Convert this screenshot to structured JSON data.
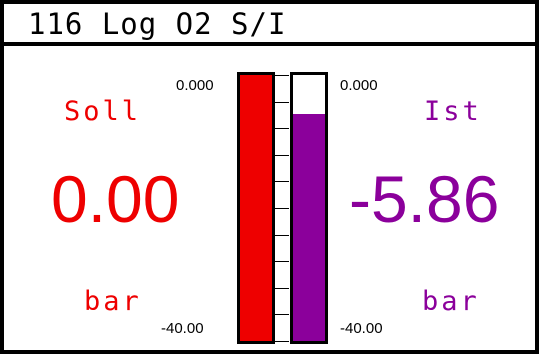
{
  "title": "116 Log O2 S/I",
  "setpoint": {
    "label": "Soll",
    "value": "0.00",
    "unit": "bar",
    "color": "#ee0000",
    "scale_top": "0.000",
    "scale_bottom": "-40.00",
    "range": [
      -40.0,
      0.0
    ],
    "bar_value": 0.0
  },
  "actual": {
    "label": "Ist",
    "value": "-5.86",
    "unit": "bar",
    "color": "#8b009b",
    "scale_top": "0.000",
    "scale_bottom": "-40.00",
    "range": [
      -40.0,
      0.0
    ],
    "bar_value": -5.86
  }
}
